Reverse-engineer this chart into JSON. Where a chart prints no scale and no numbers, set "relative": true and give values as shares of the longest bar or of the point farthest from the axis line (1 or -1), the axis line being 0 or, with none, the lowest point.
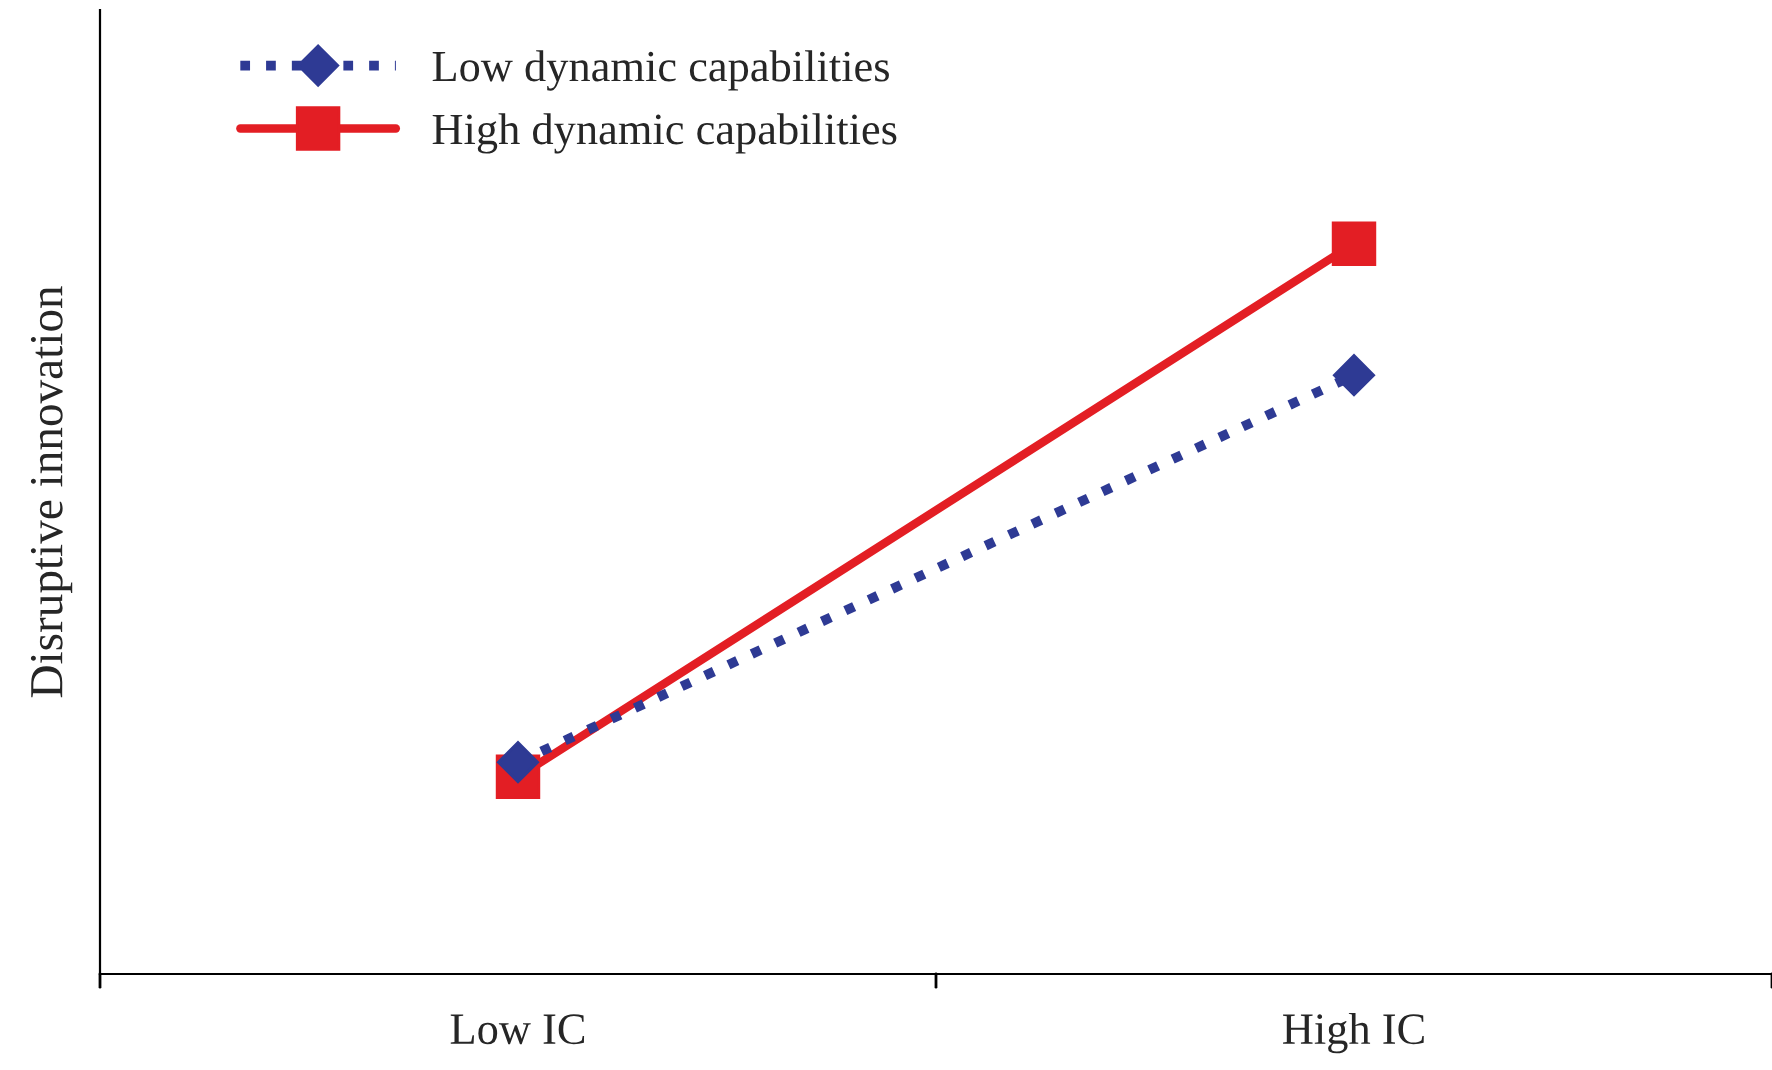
{
  "chart_data": {
    "type": "line",
    "ylabel": "Disruptive innovation",
    "categories": [
      "Low IC",
      "High IC"
    ],
    "relative": true,
    "legend": "top left",
    "grid": false,
    "series": [
      {
        "name": "Low dynamic capabilities",
        "color": "#2e3a94",
        "values": [
          0.29,
          0.82
        ],
        "marker": "diamond",
        "line_style": "dotted"
      },
      {
        "name": "High dynamic capabilities",
        "color": "#e31e24",
        "values": [
          0.27,
          1.0
        ],
        "marker": "square",
        "line_style": "solid"
      }
    ]
  }
}
